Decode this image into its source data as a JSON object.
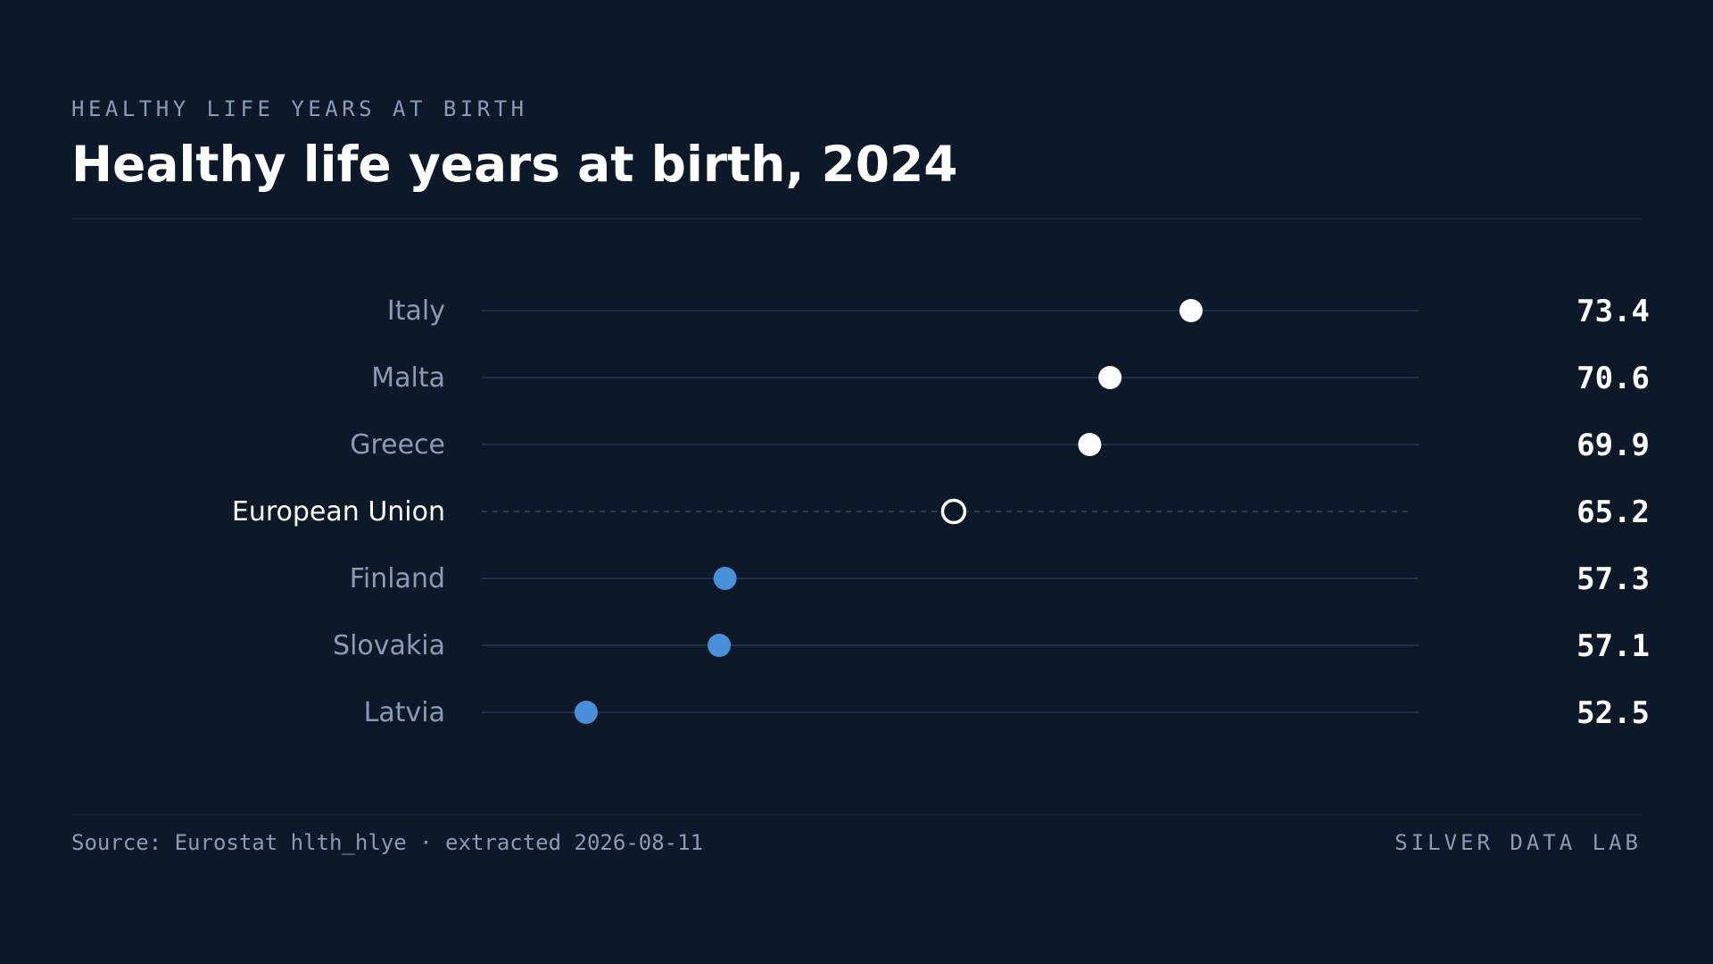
{
  "header": {
    "kicker": "HEALTHY LIFE YEARS AT BIRTH",
    "title": "Healthy life years at birth, 2024"
  },
  "footer": {
    "source": "Source: Eurostat hlth_hlye · extracted 2026-08-11",
    "brand": "SILVER DATA LAB"
  },
  "colors": {
    "background": "#0d1829",
    "track": "#1e3048",
    "above_reference_dot": "#ffffff",
    "below_reference_dot": "#4a8fd9",
    "reference_dot_stroke": "#ffffff",
    "label": "#8a9bb5",
    "reference_label": "#ffffff",
    "value": "#ffffff"
  },
  "chart_data": {
    "type": "dot",
    "title": "Healthy life years at birth, 2024",
    "xlabel": "",
    "ylabel": "",
    "xlim": [
      50,
      80
    ],
    "reference_category": "European Union",
    "categories": [
      "Italy",
      "Malta",
      "Greece",
      "European Union",
      "Finland",
      "Slovakia",
      "Latvia"
    ],
    "values": [
      73.4,
      70.6,
      69.9,
      65.2,
      57.3,
      57.1,
      52.5
    ],
    "value_labels": [
      "73.4",
      "70.6",
      "69.9",
      "65.2",
      "57.3",
      "57.1",
      "52.5"
    ],
    "grid": false,
    "legend": "none"
  }
}
